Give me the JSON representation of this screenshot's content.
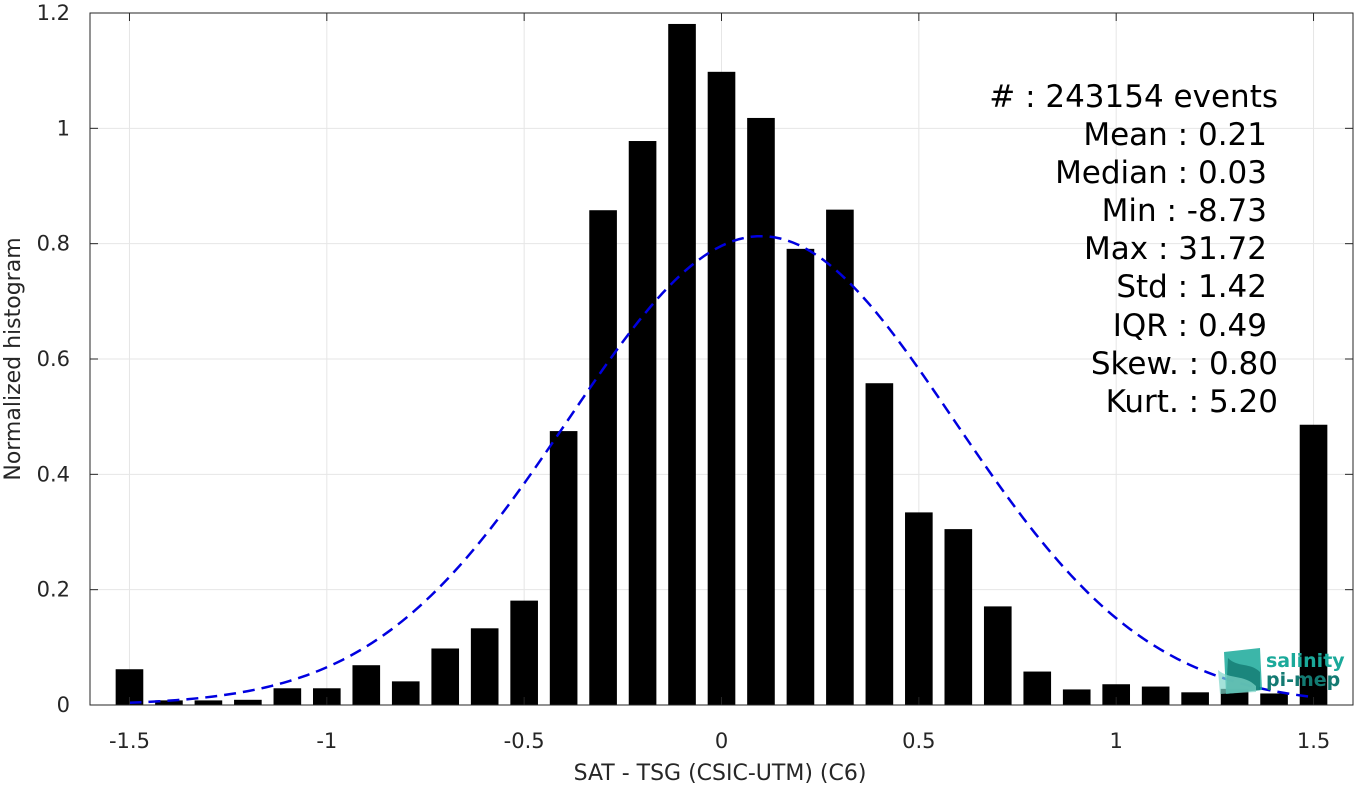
{
  "chart_data": {
    "type": "bar",
    "title": "",
    "xlabel": "SAT - TSG (CSIC-UTM) (C6)",
    "ylabel": "Normalized histogram",
    "xlim": [
      -1.6,
      1.6
    ],
    "ylim": [
      0,
      1.2
    ],
    "grid": true,
    "xticks": [
      -1.5,
      -1,
      -0.5,
      0,
      0.5,
      1,
      1.5
    ],
    "xtick_labels": [
      "-1.5",
      "-1",
      "-0.5",
      "0",
      "0.5",
      "1",
      "1.5"
    ],
    "yticks": [
      0,
      0.2,
      0.4,
      0.6,
      0.8,
      1,
      1.2
    ],
    "ytick_labels": [
      "0",
      "0.2",
      "0.4",
      "0.6",
      "0.8",
      "1",
      "1.2"
    ],
    "bar_width": 0.07,
    "bar_color": "#000000",
    "x": [
      -1.5,
      -1.4,
      -1.3,
      -1.2,
      -1.1,
      -1.0,
      -0.9,
      -0.8,
      -0.7,
      -0.6,
      -0.5,
      -0.4,
      -0.3,
      -0.2,
      -0.1,
      0.0,
      0.1,
      0.2,
      0.3,
      0.4,
      0.5,
      0.6,
      0.7,
      0.8,
      0.9,
      1.0,
      1.1,
      1.2,
      1.3,
      1.4,
      1.5
    ],
    "values": [
      0.062,
      0.008,
      0.008,
      0.009,
      0.029,
      0.029,
      0.069,
      0.041,
      0.098,
      0.133,
      0.181,
      0.475,
      0.858,
      0.978,
      1.181,
      1.098,
      1.018,
      0.791,
      0.859,
      0.558,
      0.334,
      0.305,
      0.171,
      0.058,
      0.027,
      0.036,
      0.032,
      0.022,
      0.028,
      0.02,
      0.486
    ],
    "fit": {
      "type": "gaussian",
      "mean": 0.1,
      "std": 0.49,
      "peak": 0.813,
      "x_range": [
        -1.5,
        1.5
      ],
      "color": "#0000e0",
      "style": "dashed"
    }
  },
  "stats": [
    {
      "label": "#  : 243154 events"
    },
    {
      "label": "Mean : 0.21"
    },
    {
      "label": "Median : 0.03"
    },
    {
      "label": "Min : -8.73"
    },
    {
      "label": "Max : 31.72"
    },
    {
      "label": "Std : 1.42"
    },
    {
      "label": "IQR : 0.49"
    },
    {
      "label": "Skew. : 0.80"
    },
    {
      "label": "Kurt. : 5.20"
    }
  ],
  "logo": {
    "line1": "salinity",
    "line2": "pi-mep",
    "color1": "#1aa99a",
    "color2": "#137a72"
  }
}
